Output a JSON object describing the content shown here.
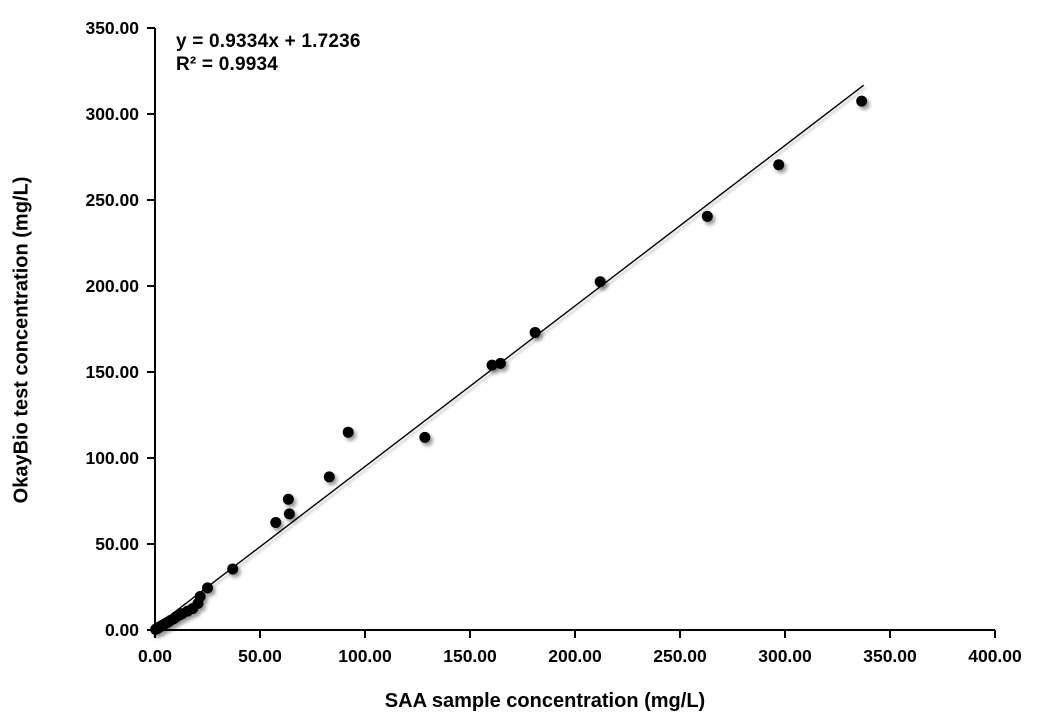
{
  "chart_data": {
    "type": "scatter",
    "title": "",
    "xlabel": "SAA sample concentration (mg/L)",
    "ylabel": "OkayBio test concentration (mg/L)",
    "xlim": [
      0,
      400
    ],
    "ylim": [
      0,
      350
    ],
    "grid": false,
    "legend_position": "none",
    "marker_color": "#000000",
    "trendline_color": "#000000",
    "axis_color": "#000000",
    "x_ticks": [
      {
        "value": 0,
        "label": "0.00"
      },
      {
        "value": 50,
        "label": "50.00"
      },
      {
        "value": 100,
        "label": "100.00"
      },
      {
        "value": 150,
        "label": "150.00"
      },
      {
        "value": 200,
        "label": "200.00"
      },
      {
        "value": 250,
        "label": "250.00"
      },
      {
        "value": 300,
        "label": "300.00"
      },
      {
        "value": 350,
        "label": "350.00"
      },
      {
        "value": 400,
        "label": "400.00"
      }
    ],
    "y_ticks": [
      {
        "value": 0,
        "label": "0.00"
      },
      {
        "value": 50,
        "label": "50.00"
      },
      {
        "value": 100,
        "label": "100.00"
      },
      {
        "value": 150,
        "label": "150.00"
      },
      {
        "value": 200,
        "label": "200.00"
      },
      {
        "value": 250,
        "label": "250.00"
      },
      {
        "value": 300,
        "label": "300.00"
      },
      {
        "value": 350,
        "label": "350.00"
      }
    ],
    "annotation": {
      "equation": "y = 0.9334x + 1.7236",
      "r_squared": "R² = 0.9934"
    },
    "trendline": {
      "slope": 0.9334,
      "intercept": 1.7236,
      "x_start": 0,
      "x_end": 337.5
    },
    "points": [
      [
        0.3,
        0.4
      ],
      [
        0.8,
        0.7
      ],
      [
        1.2,
        1.0
      ],
      [
        1.8,
        1.4
      ],
      [
        2.3,
        1.8
      ],
      [
        3.0,
        2.3
      ],
      [
        3.8,
        2.8
      ],
      [
        4.5,
        3.4
      ],
      [
        5.5,
        4.1
      ],
      [
        6.5,
        4.8
      ],
      [
        7.5,
        5.6
      ],
      [
        9.0,
        6.6
      ],
      [
        10.0,
        7.6
      ],
      [
        11.5,
        8.6
      ],
      [
        13.0,
        9.5
      ],
      [
        15.5,
        11.0
      ],
      [
        18.0,
        12.5
      ],
      [
        20.5,
        15.5
      ],
      [
        21.5,
        19.5
      ],
      [
        25.0,
        24.5
      ],
      [
        37.0,
        35.5
      ],
      [
        57.5,
        62.5
      ],
      [
        64.0,
        67.5
      ],
      [
        63.5,
        76.0
      ],
      [
        83.0,
        89.0
      ],
      [
        92.0,
        115.0
      ],
      [
        128.5,
        112.0
      ],
      [
        160.5,
        154.0
      ],
      [
        164.5,
        155.0
      ],
      [
        181.0,
        173.0
      ],
      [
        212.0,
        202.5
      ],
      [
        263.0,
        240.5
      ],
      [
        297.0,
        270.5
      ],
      [
        336.5,
        307.5
      ]
    ]
  }
}
